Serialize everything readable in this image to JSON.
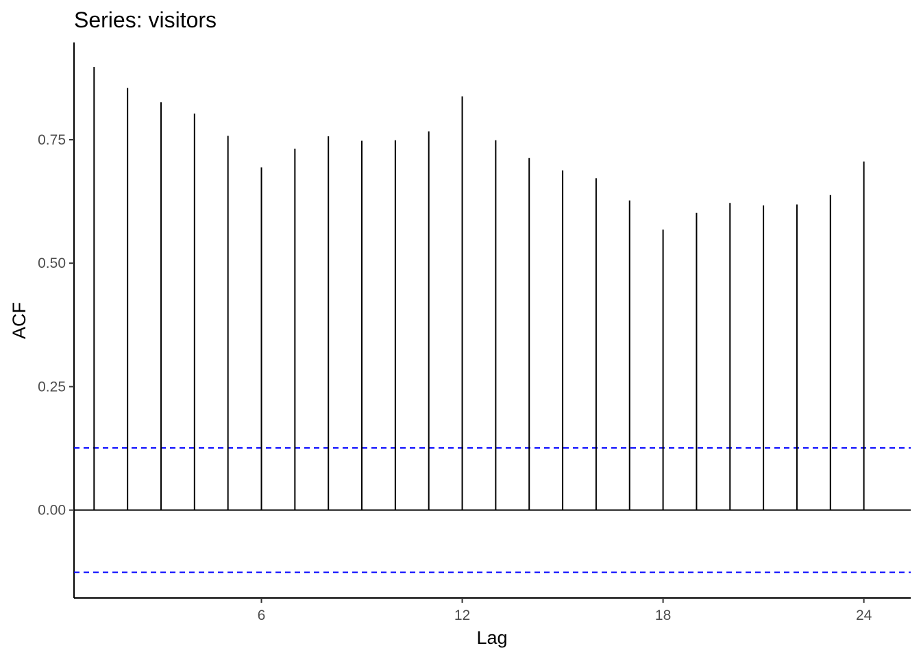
{
  "chart_data": {
    "type": "bar",
    "title": "Series: visitors",
    "xlabel": "Lag",
    "ylabel": "ACF",
    "x": [
      1,
      2,
      3,
      4,
      5,
      6,
      7,
      8,
      9,
      10,
      11,
      12,
      13,
      14,
      15,
      16,
      17,
      18,
      19,
      20,
      21,
      22,
      23,
      24
    ],
    "values": [
      0.897,
      0.855,
      0.826,
      0.803,
      0.758,
      0.694,
      0.732,
      0.757,
      0.748,
      0.749,
      0.767,
      0.838,
      0.749,
      0.713,
      0.688,
      0.672,
      0.627,
      0.568,
      0.602,
      0.622,
      0.617,
      0.619,
      0.638,
      0.706
    ],
    "confidence_bound": 0.126,
    "xlim": [
      0.4,
      25.4
    ],
    "ylim": [
      -0.178,
      0.947
    ],
    "x_ticks": [
      6,
      12,
      18,
      24
    ],
    "y_ticks": [
      "0.00",
      "0.25",
      "0.50",
      "0.75"
    ],
    "grid": false,
    "colors": {
      "spike": "#000000",
      "zero_line": "#000000",
      "confidence": "#0000ff",
      "tick_label": "#4d4d4d"
    }
  }
}
